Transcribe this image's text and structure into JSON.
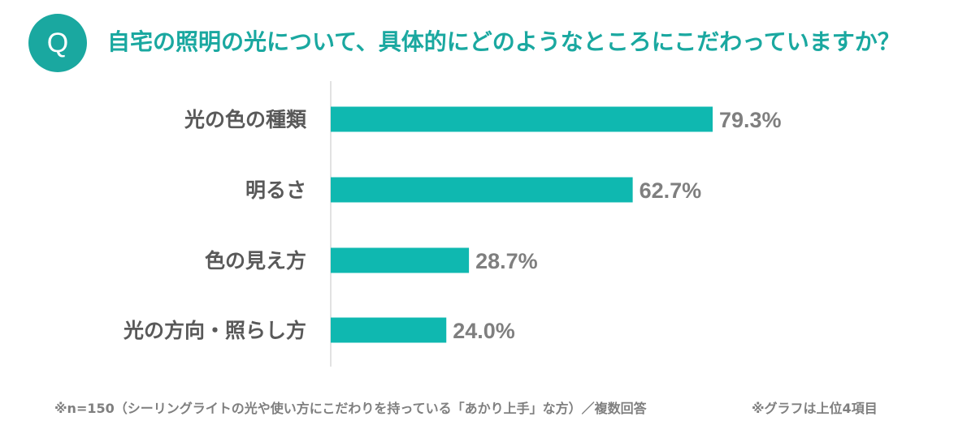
{
  "header": {
    "badge": "Q",
    "question": "自宅の照明の光について、具体的にどのようなところにこだわっていますか？"
  },
  "chart_data": {
    "type": "bar",
    "orientation": "horizontal",
    "categories": [
      "光の色の種類",
      "明るさ",
      "色の見え方",
      "光の方向・照らし方"
    ],
    "values": [
      79.3,
      62.7,
      28.7,
      24.0
    ],
    "value_labels": [
      "79.3%",
      "62.7%",
      "28.7%",
      "24.0%"
    ],
    "unit": "%",
    "xlim": [
      0,
      100
    ],
    "grid": false,
    "legend": "none",
    "bar_color": "#0fb8b0"
  },
  "footnotes": {
    "sample": "※n=150（シーリングライトの光や使い方にこだわりを持っている「あかり上手」な方）／複数回答",
    "note": "※グラフは上位4項目"
  },
  "colors": {
    "accent": "#1aa8a0",
    "bar": "#0fb8b0",
    "label_text": "#595959",
    "value_text": "#7f7f7f"
  }
}
